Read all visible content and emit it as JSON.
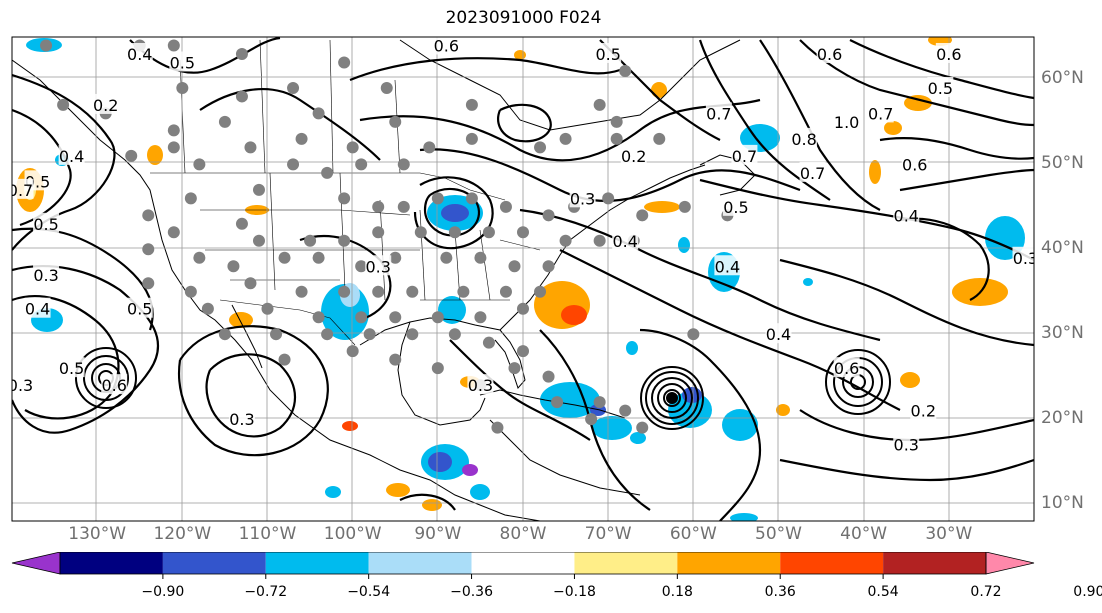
{
  "title": "2023091000 F024",
  "lon_labels": [
    "130°W",
    "120°W",
    "110°W",
    "100°W",
    "90°W",
    "80°W",
    "70°W",
    "60°W",
    "50°W",
    "40°W",
    "30°W"
  ],
  "lat_labels": [
    "60°N",
    "50°N",
    "40°N",
    "30°N",
    "20°N",
    "10°N"
  ],
  "colorbar": {
    "tick_labels": [
      "−0.90",
      "−0.72",
      "−0.54",
      "−0.36",
      "−0.18",
      "0.18",
      "0.36",
      "0.54",
      "0.72",
      "0.90"
    ],
    "colors": [
      "#9933cc",
      "#000080",
      "#3355cc",
      "#00bbee",
      "#aaddf8",
      "#ffffff",
      "#ffee88",
      "#ffa500",
      "#ff4500",
      "#b22222",
      "#ff88aa"
    ]
  },
  "contour_labels": [
    {
      "text": "0.4",
      "lon": -125,
      "lat": 63
    },
    {
      "text": "0.5",
      "lon": -120,
      "lat": 62
    },
    {
      "text": "0.6",
      "lon": -89,
      "lat": 64
    },
    {
      "text": "0.5",
      "lon": -70,
      "lat": 63
    },
    {
      "text": "0.2",
      "lon": -129,
      "lat": 57
    },
    {
      "text": "0.4",
      "lon": -133,
      "lat": 51
    },
    {
      "text": "0.5",
      "lon": -137,
      "lat": 48
    },
    {
      "text": "0.7",
      "lon": -139,
      "lat": 47
    },
    {
      "text": "0.5",
      "lon": -136,
      "lat": 43
    },
    {
      "text": "0.3",
      "lon": -136,
      "lat": 37
    },
    {
      "text": "0.4",
      "lon": -137,
      "lat": 33
    },
    {
      "text": "0.5",
      "lon": -125,
      "lat": 33
    },
    {
      "text": "0.3",
      "lon": -97,
      "lat": 38
    },
    {
      "text": "0.3",
      "lon": -73,
      "lat": 46
    },
    {
      "text": "0.2",
      "lon": -67,
      "lat": 51
    },
    {
      "text": "0.4",
      "lon": -68,
      "lat": 41
    },
    {
      "text": "0.4",
      "lon": -56,
      "lat": 38
    },
    {
      "text": "0.5",
      "lon": -55,
      "lat": 45
    },
    {
      "text": "0.7",
      "lon": -57,
      "lat": 56
    },
    {
      "text": "0.7",
      "lon": -54,
      "lat": 51
    },
    {
      "text": "0.8",
      "lon": -47,
      "lat": 53
    },
    {
      "text": "0.7",
      "lon": -46,
      "lat": 49
    },
    {
      "text": "0.6",
      "lon": -44,
      "lat": 63
    },
    {
      "text": "1.0",
      "lon": -42,
      "lat": 55
    },
    {
      "text": "0.7",
      "lon": -38,
      "lat": 56
    },
    {
      "text": "0.6",
      "lon": -30,
      "lat": 63
    },
    {
      "text": "0.5",
      "lon": -31,
      "lat": 59
    },
    {
      "text": "0.6",
      "lon": -34,
      "lat": 50
    },
    {
      "text": "0.4",
      "lon": -35,
      "lat": 44
    },
    {
      "text": "0.3",
      "lon": -21,
      "lat": 39
    },
    {
      "text": "0.4",
      "lon": -50,
      "lat": 30
    },
    {
      "text": "0.3",
      "lon": -85,
      "lat": 24
    },
    {
      "text": "0.3",
      "lon": -113,
      "lat": 20
    },
    {
      "text": "0.5",
      "lon": -133,
      "lat": 26
    },
    {
      "text": "0.6",
      "lon": -128,
      "lat": 24
    },
    {
      "text": "0.3",
      "lon": -139,
      "lat": 24
    },
    {
      "text": "0.6",
      "lon": -42,
      "lat": 26
    },
    {
      "text": "0.2",
      "lon": -33,
      "lat": 21
    },
    {
      "text": "0.3",
      "lon": -35,
      "lat": 17
    }
  ]
}
